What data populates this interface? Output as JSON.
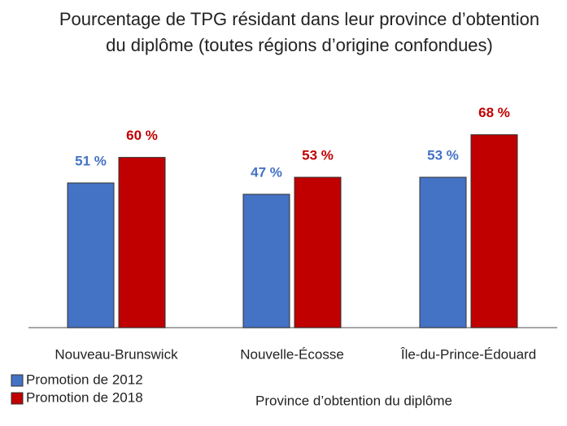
{
  "chart_data": {
    "type": "bar",
    "title": "Pourcentage de TPG résidant dans leur province d’obtention du diplôme (toutes régions d’origine confondues)",
    "x_label": "Province d’obtention du diplôme",
    "categories": [
      "Nouveau-Brunswick",
      "Nouvelle-Écosse",
      "Île-du-Prince-Édouard"
    ],
    "series": [
      {
        "name": "Promotion de 2012",
        "color": "#4472c4",
        "values": [
          51,
          47,
          53
        ],
        "value_labels": [
          "51 %",
          "47 %",
          "53 %"
        ]
      },
      {
        "name": "Promotion de 2018",
        "color": "#c00000",
        "values": [
          60,
          53,
          68
        ],
        "value_labels": [
          "60 %",
          "53 %",
          "68 %"
        ]
      }
    ]
  }
}
